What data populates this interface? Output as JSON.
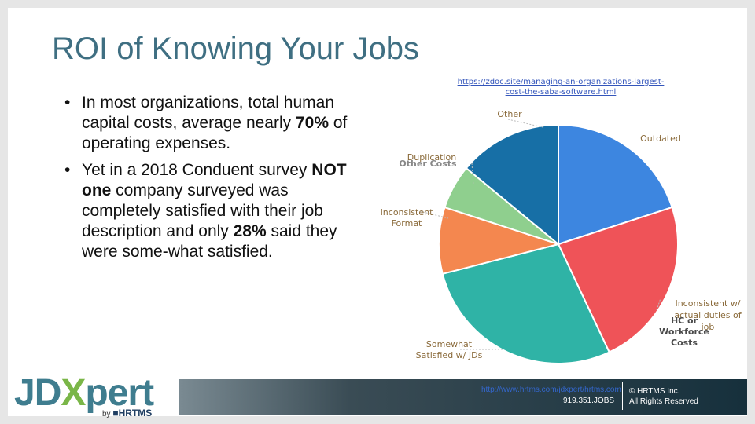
{
  "slide": {
    "title": "ROI of Knowing Your Jobs",
    "bullets": [
      {
        "parts": [
          {
            "text": "In most organizations, total human capital costs, average nearly ",
            "bold": false
          },
          {
            "text": "70%",
            "bold": true
          },
          {
            "text": " of operating expenses.",
            "bold": false
          }
        ]
      },
      {
        "parts": [
          {
            "text": "Yet in a 2018 Conduent survey ",
            "bold": false
          },
          {
            "text": "NOT one",
            "bold": true
          },
          {
            "text": " company surveyed was completely satisfied with their job description and only ",
            "bold": false
          },
          {
            "text": "28%",
            "bold": true
          },
          {
            "text": " said they were some-what satisfied.",
            "bold": false
          }
        ]
      }
    ]
  },
  "chart_data": {
    "type": "pie",
    "source_link": "https://zdoc.site/managing-an-organizations-largest-cost-the-saba-software.html",
    "slices": [
      {
        "label": "Outdated",
        "value": 20,
        "color": "#3d86e0"
      },
      {
        "label": "Inconsistent w/ actual duties of job",
        "value": 23,
        "color": "#ef5358"
      },
      {
        "label": "Somewhat Satisfied w/ JDs",
        "value": 28,
        "color": "#2fb3a6"
      },
      {
        "label": "Inconsistent Format",
        "value": 9,
        "color": "#f4874f"
      },
      {
        "label": "Duplication",
        "value": 6,
        "color": "#8fcf8e"
      },
      {
        "label": "Other",
        "value": 14,
        "color": "#176fa6"
      }
    ],
    "overlay_labels": [
      "Other Costs",
      "HC or Workforce Costs"
    ]
  },
  "footer": {
    "link": "http://www.hrtms.com/jdxpert/hrtms.com",
    "phone": "919.351.JOBS",
    "copyright": "© HRTMS Inc.",
    "rights": "All Rights Reserved"
  },
  "logo": {
    "main_a": "JD",
    "main_x": "X",
    "main_b": "pert",
    "by": "by",
    "company": "HRTMS"
  }
}
